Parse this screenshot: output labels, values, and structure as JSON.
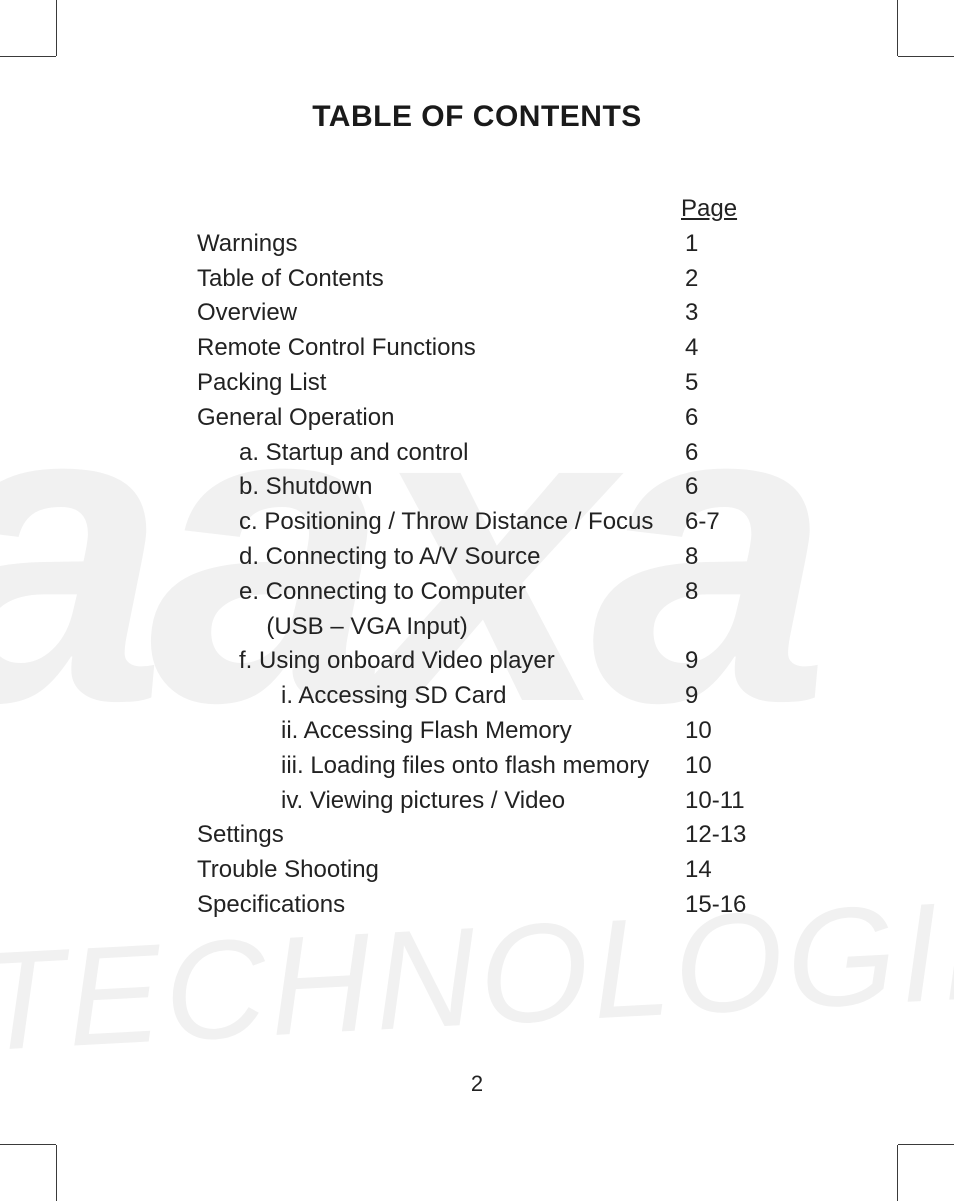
{
  "title": "TABLE OF CONTENTS",
  "page_header": "Page",
  "page_number": "2",
  "watermark": {
    "text_top": "aaxa",
    "text_bottom": "TECHNOLOGIES",
    "color": "#f1f1f1"
  },
  "entries": [
    {
      "label": "Warnings",
      "page": "1",
      "indent": 0
    },
    {
      "label": "Table of Contents",
      "page": "2",
      "indent": 0
    },
    {
      "label": "Overview",
      "page": "3",
      "indent": 0
    },
    {
      "label": "Remote Control Functions",
      "page": "4",
      "indent": 0
    },
    {
      "label": "Packing List",
      "page": "5",
      "indent": 0
    },
    {
      "label": "General Operation",
      "page": "6",
      "indent": 0
    },
    {
      "label": "a. Startup and control",
      "page": "6",
      "indent": 1
    },
    {
      "label": "b. Shutdown",
      "page": "6",
      "indent": 1
    },
    {
      "label": "c. Positioning / Throw Distance / Focus",
      "page": "6-7",
      "indent": 1
    },
    {
      "label": "d. Connecting to A/V Source",
      "page": "8",
      "indent": 1
    },
    {
      "label": "e. Connecting to Computer",
      "page": "8",
      "indent": 1
    },
    {
      "label": "  (USB – VGA Input)",
      "page": "",
      "indent": 1,
      "continuation": true
    },
    {
      "label": "f. Using onboard Video player",
      "page": "9",
      "indent": 1
    },
    {
      "label": "i.  Accessing SD Card",
      "page": "9",
      "indent": 2
    },
    {
      "label": "ii. Accessing Flash Memory",
      "page": "10",
      "indent": 2
    },
    {
      "label": "iii. Loading files onto flash memory",
      "page": "10",
      "indent": 2
    },
    {
      "label": "iv. Viewing pictures / Video",
      "page": "10-11",
      "indent": 2
    },
    {
      "label": "Settings",
      "page": "12-13",
      "indent": 0
    },
    {
      "label": "Trouble Shooting",
      "page": "14",
      "indent": 0
    },
    {
      "label": "Specifications",
      "page": "15-16",
      "indent": 0
    }
  ]
}
